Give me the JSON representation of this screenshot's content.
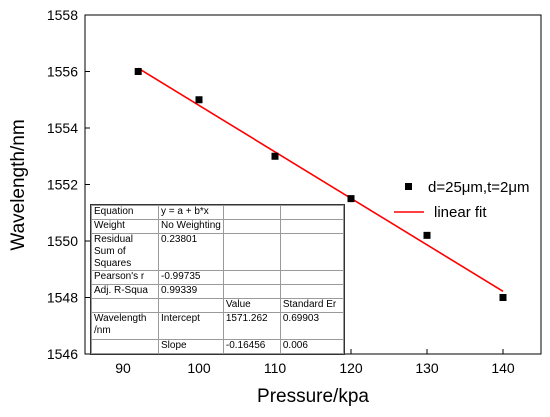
{
  "chart_data": {
    "type": "scatter",
    "xlabel": "Pressure/kpa",
    "ylabel": "Wavelength/nm",
    "xlim": [
      85,
      145
    ],
    "ylim": [
      1546,
      1558
    ],
    "xticks": [
      90,
      100,
      110,
      120,
      130,
      140
    ],
    "yticks": [
      1546,
      1548,
      1550,
      1552,
      1554,
      1556,
      1558
    ],
    "grid": false,
    "legend_position": "right",
    "series": [
      {
        "name": "d=25μm,t=2μm",
        "type": "scatter",
        "color": "#000000",
        "marker": "square",
        "x": [
          92,
          100,
          110,
          120,
          130,
          140
        ],
        "y": [
          1556.0,
          1555.0,
          1553.0,
          1551.5,
          1550.2,
          1548.0
        ]
      },
      {
        "name": "linear fit",
        "type": "line",
        "color": "#ff0000",
        "x": [
          92,
          140
        ],
        "y": [
          1556.118,
          1548.219
        ]
      }
    ]
  },
  "stats_table": {
    "rows": [
      [
        "Equation",
        "y = a + b*x",
        "",
        ""
      ],
      [
        "Weight",
        "No Weighting",
        "",
        ""
      ],
      [
        "Residual Sum of Squares",
        "0.23801",
        "",
        ""
      ],
      [
        "Pearson's r",
        "-0.99735",
        "",
        ""
      ],
      [
        "Adj. R-Squa",
        "0.99339",
        "",
        ""
      ],
      [
        "",
        "",
        "Value",
        "Standard Er"
      ],
      [
        "Wavelength /nm",
        "Intercept",
        "1571.262",
        "0.69903"
      ],
      [
        "",
        "Slope",
        "-0.16456",
        "0.006"
      ]
    ]
  }
}
